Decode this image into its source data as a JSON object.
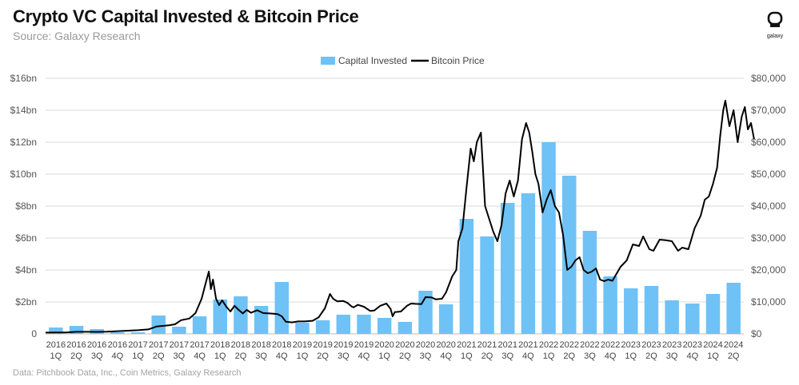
{
  "header": {
    "title": "Crypto VC Capital Invested & Bitcoin Price",
    "subtitle": "Source: Galaxy Research",
    "logo_text": "galaxy"
  },
  "footnote": "Data: Pitchbook Data, Inc., Coin Metrics, Galaxy Research",
  "colors": {
    "bar": "#6ec2f5",
    "line": "#000000",
    "grid": "#d9d9d9",
    "axis": "#bfbfbf"
  },
  "chart_data": {
    "type": "bar",
    "categories": [
      [
        "2016",
        "1Q"
      ],
      [
        "2016",
        "2Q"
      ],
      [
        "2016",
        "3Q"
      ],
      [
        "2016",
        "4Q"
      ],
      [
        "2017",
        "1Q"
      ],
      [
        "2017",
        "2Q"
      ],
      [
        "2017",
        "3Q"
      ],
      [
        "2017",
        "4Q"
      ],
      [
        "2018",
        "1Q"
      ],
      [
        "2018",
        "2Q"
      ],
      [
        "2018",
        "3Q"
      ],
      [
        "2018",
        "4Q"
      ],
      [
        "2019",
        "1Q"
      ],
      [
        "2019",
        "2Q"
      ],
      [
        "2019",
        "3Q"
      ],
      [
        "2019",
        "4Q"
      ],
      [
        "2020",
        "1Q"
      ],
      [
        "2020",
        "2Q"
      ],
      [
        "2020",
        "3Q"
      ],
      [
        "2020",
        "4Q"
      ],
      [
        "2021",
        "1Q"
      ],
      [
        "2021",
        "2Q"
      ],
      [
        "2021",
        "3Q"
      ],
      [
        "2021",
        "4Q"
      ],
      [
        "2022",
        "1Q"
      ],
      [
        "2022",
        "2Q"
      ],
      [
        "2022",
        "3Q"
      ],
      [
        "2022",
        "4Q"
      ],
      [
        "2023",
        "1Q"
      ],
      [
        "2023",
        "2Q"
      ],
      [
        "2023",
        "3Q"
      ],
      [
        "2023",
        "4Q"
      ],
      [
        "2024",
        "1Q"
      ],
      [
        "2024",
        "2Q"
      ]
    ],
    "series": [
      {
        "name": "Capital Invested",
        "type": "bar",
        "axis": "left",
        "values": [
          0.4,
          0.5,
          0.3,
          0.1,
          0.1,
          1.15,
          0.45,
          1.1,
          2.15,
          2.35,
          1.75,
          3.25,
          0.7,
          0.85,
          1.2,
          1.2,
          1.0,
          0.75,
          2.7,
          1.85,
          7.2,
          6.1,
          8.2,
          8.8,
          12.0,
          9.9,
          6.45,
          3.6,
          2.85,
          3.0,
          2.1,
          1.9,
          2.5,
          3.2
        ]
      },
      {
        "name": "Bitcoin Price",
        "type": "line",
        "axis": "right",
        "points": [
          [
            0,
            400
          ],
          [
            0.5,
            420
          ],
          [
            1,
            450
          ],
          [
            1.5,
            650
          ],
          [
            2,
            640
          ],
          [
            2.5,
            620
          ],
          [
            3,
            700
          ],
          [
            3.5,
            850
          ],
          [
            4,
            1000
          ],
          [
            4.5,
            1150
          ],
          [
            5,
            1400
          ],
          [
            5.4,
            2300
          ],
          [
            5.7,
            2500
          ],
          [
            6,
            2700
          ],
          [
            6.3,
            3000
          ],
          [
            6.6,
            4300
          ],
          [
            7,
            4800
          ],
          [
            7.3,
            6500
          ],
          [
            7.6,
            11000
          ],
          [
            7.8,
            16000
          ],
          [
            7.95,
            19500
          ],
          [
            8.05,
            14000
          ],
          [
            8.15,
            17000
          ],
          [
            8.3,
            11000
          ],
          [
            8.45,
            9000
          ],
          [
            8.6,
            10500
          ],
          [
            8.8,
            8500
          ],
          [
            9,
            7000
          ],
          [
            9.2,
            8800
          ],
          [
            9.4,
            7500
          ],
          [
            9.6,
            6400
          ],
          [
            9.8,
            7500
          ],
          [
            10,
            6600
          ],
          [
            10.3,
            7400
          ],
          [
            10.6,
            6500
          ],
          [
            10.9,
            6400
          ],
          [
            11.1,
            6300
          ],
          [
            11.3,
            6200
          ],
          [
            11.5,
            5500
          ],
          [
            11.7,
            3800
          ],
          [
            12,
            3600
          ],
          [
            12.3,
            3900
          ],
          [
            12.6,
            3900
          ],
          [
            13,
            4100
          ],
          [
            13.3,
            5200
          ],
          [
            13.6,
            8000
          ],
          [
            13.85,
            12500
          ],
          [
            14,
            11000
          ],
          [
            14.2,
            10200
          ],
          [
            14.5,
            10300
          ],
          [
            14.7,
            9700
          ],
          [
            14.9,
            8600
          ],
          [
            15,
            8300
          ],
          [
            15.2,
            9100
          ],
          [
            15.5,
            8500
          ],
          [
            15.8,
            7200
          ],
          [
            16,
            7300
          ],
          [
            16.3,
            8800
          ],
          [
            16.6,
            9500
          ],
          [
            16.8,
            7800
          ],
          [
            16.9,
            5500
          ],
          [
            17,
            6800
          ],
          [
            17.3,
            7000
          ],
          [
            17.6,
            8800
          ],
          [
            17.8,
            9500
          ],
          [
            18,
            9400
          ],
          [
            18.3,
            9300
          ],
          [
            18.5,
            11500
          ],
          [
            18.8,
            11400
          ],
          [
            19,
            10800
          ],
          [
            19.3,
            11000
          ],
          [
            19.5,
            13000
          ],
          [
            19.8,
            18000
          ],
          [
            20,
            20000
          ],
          [
            20.1,
            29000
          ],
          [
            20.3,
            33000
          ],
          [
            20.5,
            46000
          ],
          [
            20.7,
            58000
          ],
          [
            20.85,
            54000
          ],
          [
            21,
            60000
          ],
          [
            21.2,
            63000
          ],
          [
            21.4,
            40000
          ],
          [
            21.6,
            36000
          ],
          [
            21.8,
            32000
          ],
          [
            22,
            29000
          ],
          [
            22.2,
            34000
          ],
          [
            22.4,
            44000
          ],
          [
            22.6,
            48000
          ],
          [
            22.8,
            43000
          ],
          [
            23,
            48000
          ],
          [
            23.2,
            61000
          ],
          [
            23.4,
            66000
          ],
          [
            23.55,
            63000
          ],
          [
            23.7,
            57000
          ],
          [
            23.85,
            50000
          ],
          [
            24,
            47000
          ],
          [
            24.2,
            38000
          ],
          [
            24.4,
            42000
          ],
          [
            24.6,
            45000
          ],
          [
            24.8,
            40000
          ],
          [
            25,
            38000
          ],
          [
            25.2,
            31000
          ],
          [
            25.4,
            20000
          ],
          [
            25.6,
            21000
          ],
          [
            25.8,
            23000
          ],
          [
            26,
            24000
          ],
          [
            26.2,
            20000
          ],
          [
            26.4,
            19000
          ],
          [
            26.6,
            19500
          ],
          [
            26.8,
            20500
          ],
          [
            27,
            17000
          ],
          [
            27.2,
            16500
          ],
          [
            27.4,
            17000
          ],
          [
            27.6,
            16600
          ],
          [
            28,
            21000
          ],
          [
            28.3,
            23000
          ],
          [
            28.6,
            28000
          ],
          [
            28.9,
            27500
          ],
          [
            29.1,
            30500
          ],
          [
            29.4,
            26500
          ],
          [
            29.6,
            26000
          ],
          [
            29.9,
            29500
          ],
          [
            30.2,
            29300
          ],
          [
            30.5,
            29000
          ],
          [
            30.8,
            26000
          ],
          [
            31,
            27000
          ],
          [
            31.3,
            26500
          ],
          [
            31.6,
            33000
          ],
          [
            31.9,
            37000
          ],
          [
            32.1,
            42000
          ],
          [
            32.3,
            43000
          ],
          [
            32.5,
            47000
          ],
          [
            32.7,
            52000
          ],
          [
            32.85,
            62000
          ],
          [
            33,
            70000
          ],
          [
            33.1,
            73000
          ],
          [
            33.3,
            65000
          ],
          [
            33.5,
            70000
          ],
          [
            33.7,
            60000
          ],
          [
            33.9,
            68000
          ],
          [
            34.05,
            71000
          ],
          [
            34.2,
            64000
          ],
          [
            34.35,
            66000
          ],
          [
            34.5,
            61000
          ]
        ]
      }
    ],
    "left_axis": {
      "min": 0,
      "max": 16,
      "ticks": [
        "0",
        "$2bn",
        "$4bn",
        "$6bn",
        "$8bn",
        "$10bn",
        "$12bn",
        "$14bn",
        "$16bn"
      ]
    },
    "right_axis": {
      "min": 0,
      "max": 80000,
      "ticks": [
        "$0",
        "$10,000",
        "$20,000",
        "$30,000",
        "$40,000",
        "$50,000",
        "$60,000",
        "$70,000",
        "$80,000"
      ]
    },
    "grid": true,
    "legend_position": "top-center",
    "title": "Crypto VC Capital Invested & Bitcoin Price"
  }
}
